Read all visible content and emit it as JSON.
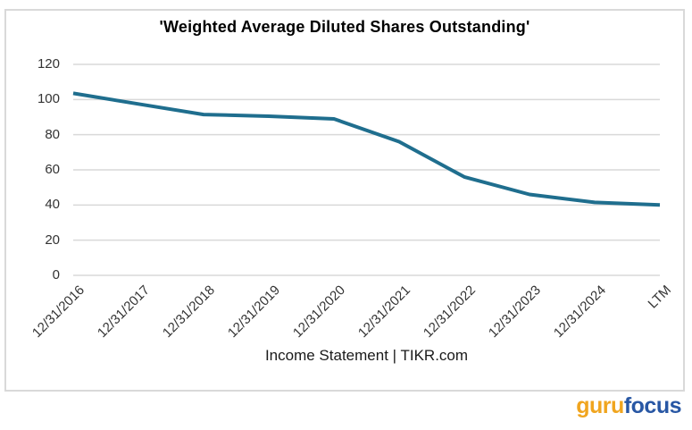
{
  "chart_data": {
    "type": "line",
    "title": "'Weighted Average Diluted Shares Outstanding'",
    "categories": [
      "12/31/2016",
      "12/31/2017",
      "12/31/2018",
      "12/31/2019",
      "12/31/2020",
      "12/31/2021",
      "12/31/2022",
      "12/31/2023",
      "12/31/2024",
      "LTM"
    ],
    "values": [
      103.5,
      97.5,
      91.5,
      90.5,
      89,
      76,
      56,
      46,
      41.5,
      40
    ],
    "ylim": [
      0,
      120
    ],
    "yticks": [
      0,
      20,
      40,
      60,
      80,
      100,
      120
    ],
    "xlabel": "Income Statement | TIKR.com",
    "legend": "none",
    "grid": true,
    "line_color": "#1f6e8e",
    "line_width": 4,
    "gridline_color": "#d9d9d9"
  },
  "footer": {
    "logo_guru": "guru",
    "logo_focus": "focus"
  }
}
